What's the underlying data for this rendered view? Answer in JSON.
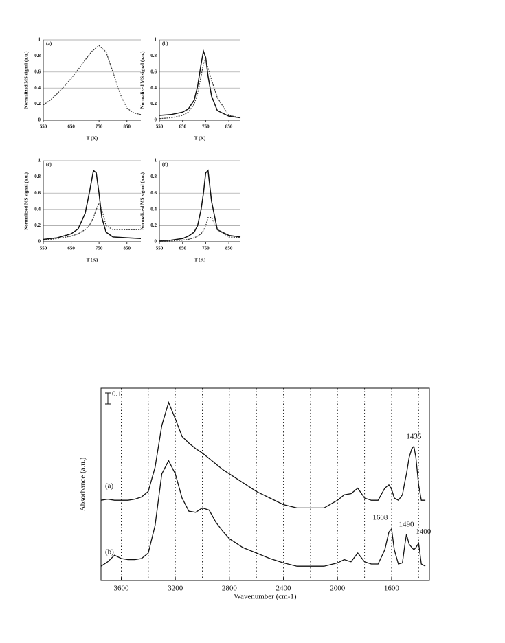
{
  "chart_data": [
    {
      "type": "line",
      "panel_label": "(a)",
      "xlabel": "T (K)",
      "ylabel": "Normalized MS signal (a.u.)",
      "xlim": [
        550,
        900
      ],
      "xticks": [
        550,
        650,
        750,
        850
      ],
      "ylim": [
        0,
        1
      ],
      "yticks": [
        0,
        0.2,
        0.4,
        0.6,
        0.8,
        1
      ],
      "grid": true,
      "x": [
        550,
        575,
        600,
        625,
        650,
        675,
        700,
        725,
        750,
        775,
        800,
        825,
        850,
        875,
        900
      ],
      "series": [
        {
          "color": "#333333",
          "dash": "dashed",
          "values": [
            0.19,
            0.25,
            0.33,
            0.42,
            0.52,
            0.63,
            0.75,
            0.86,
            0.93,
            0.85,
            0.6,
            0.33,
            0.15,
            0.09,
            0.07
          ]
        }
      ]
    },
    {
      "type": "line",
      "panel_label": "(b)",
      "xlabel": "T (K)",
      "ylabel": "Normalized MS signal (a.u.)",
      "xlim": [
        550,
        900
      ],
      "xticks": [
        550,
        650,
        750,
        850
      ],
      "ylim": [
        0,
        1
      ],
      "yticks": [
        0,
        0.2,
        0.4,
        0.6,
        0.8,
        1
      ],
      "grid": true,
      "x": [
        550,
        600,
        650,
        675,
        700,
        715,
        730,
        740,
        750,
        760,
        775,
        800,
        850,
        900
      ],
      "series": [
        {
          "color": "#111111",
          "dash": "solid",
          "values": [
            0.06,
            0.07,
            0.1,
            0.14,
            0.25,
            0.42,
            0.7,
            0.86,
            0.78,
            0.55,
            0.3,
            0.12,
            0.05,
            0.03
          ]
        },
        {
          "color": "#333333",
          "dash": "dashed",
          "values": [
            0.02,
            0.03,
            0.06,
            0.1,
            0.2,
            0.33,
            0.55,
            0.7,
            0.76,
            0.65,
            0.5,
            0.28,
            0.06,
            0.03
          ]
        }
      ]
    },
    {
      "type": "line",
      "panel_label": "(c)",
      "xlabel": "T (K)",
      "ylabel": "Normalized MS signal (a.u.)",
      "xlim": [
        550,
        900
      ],
      "xticks": [
        550,
        650,
        750,
        850
      ],
      "ylim": [
        0,
        1
      ],
      "yticks": [
        0,
        0.2,
        0.4,
        0.6,
        0.8,
        1
      ],
      "grid": true,
      "x": [
        550,
        600,
        650,
        675,
        700,
        715,
        730,
        740,
        750,
        760,
        775,
        800,
        850,
        900
      ],
      "series": [
        {
          "color": "#111111",
          "dash": "solid",
          "values": [
            0.03,
            0.05,
            0.1,
            0.16,
            0.35,
            0.6,
            0.88,
            0.85,
            0.6,
            0.3,
            0.12,
            0.06,
            0.05,
            0.04
          ]
        },
        {
          "color": "#333333",
          "dash": "dashed",
          "values": [
            0.02,
            0.04,
            0.07,
            0.1,
            0.15,
            0.2,
            0.3,
            0.4,
            0.47,
            0.4,
            0.2,
            0.15,
            0.15,
            0.15
          ]
        }
      ]
    },
    {
      "type": "line",
      "panel_label": "(d)",
      "xlabel": "T (K)",
      "ylabel": "Normalized MS signal (a.u.)",
      "xlim": [
        550,
        900
      ],
      "xticks": [
        550,
        650,
        750,
        850
      ],
      "ylim": [
        0,
        1
      ],
      "yticks": [
        0,
        0.2,
        0.4,
        0.6,
        0.8,
        1
      ],
      "grid": true,
      "x": [
        550,
        600,
        650,
        675,
        700,
        715,
        730,
        740,
        750,
        760,
        775,
        800,
        850,
        900
      ],
      "series": [
        {
          "color": "#111111",
          "dash": "solid",
          "values": [
            0.01,
            0.02,
            0.04,
            0.07,
            0.12,
            0.2,
            0.4,
            0.6,
            0.85,
            0.88,
            0.5,
            0.15,
            0.08,
            0.06
          ]
        },
        {
          "color": "#333333",
          "dash": "dashed",
          "values": [
            0.01,
            0.01,
            0.02,
            0.03,
            0.05,
            0.07,
            0.1,
            0.14,
            0.2,
            0.3,
            0.3,
            0.15,
            0.06,
            0.05
          ]
        }
      ]
    },
    {
      "type": "spectrum",
      "xlabel": "Wavenumber (cm-1)",
      "ylabel": "Absorbance (a.u.)",
      "xlim": [
        3750,
        1320
      ],
      "xticks": [
        3600,
        3200,
        2800,
        2400,
        2000,
        1600
      ],
      "xgrid": [
        3600,
        3400,
        3200,
        3000,
        2800,
        2600,
        2400,
        2200,
        2000,
        1800,
        1600,
        1400
      ],
      "ylim": [
        0,
        1.75
      ],
      "scale_bar": 0.1,
      "x": [
        3750,
        3700,
        3650,
        3600,
        3550,
        3500,
        3450,
        3400,
        3350,
        3300,
        3250,
        3200,
        3150,
        3100,
        3050,
        3000,
        2950,
        2900,
        2850,
        2800,
        2700,
        2600,
        2500,
        2400,
        2300,
        2200,
        2100,
        2000,
        1950,
        1900,
        1850,
        1800,
        1750,
        1700,
        1650,
        1620,
        1600,
        1580,
        1550,
        1520,
        1500,
        1490,
        1470,
        1450,
        1435,
        1420,
        1400,
        1380,
        1350
      ],
      "series": [
        {
          "name": "(a)",
          "color": "#111111",
          "peaks": [
            1435
          ],
          "values": [
            0.73,
            0.74,
            0.73,
            0.73,
            0.73,
            0.74,
            0.76,
            0.81,
            1.03,
            1.41,
            1.62,
            1.47,
            1.31,
            1.25,
            1.2,
            1.16,
            1.11,
            1.06,
            1.01,
            0.97,
            0.89,
            0.81,
            0.75,
            0.69,
            0.66,
            0.66,
            0.66,
            0.73,
            0.78,
            0.79,
            0.84,
            0.75,
            0.73,
            0.73,
            0.84,
            0.87,
            0.83,
            0.75,
            0.73,
            0.78,
            0.91,
            0.97,
            1.12,
            1.2,
            1.22,
            1.12,
            0.87,
            0.73,
            0.73
          ]
        },
        {
          "name": "(b)",
          "color": "#111111",
          "peaks": [
            1608,
            1490,
            1400
          ],
          "values": [
            0.13,
            0.17,
            0.23,
            0.2,
            0.19,
            0.19,
            0.2,
            0.25,
            0.5,
            0.97,
            1.09,
            0.97,
            0.75,
            0.63,
            0.62,
            0.66,
            0.64,
            0.53,
            0.45,
            0.38,
            0.3,
            0.25,
            0.2,
            0.16,
            0.13,
            0.13,
            0.13,
            0.16,
            0.19,
            0.17,
            0.25,
            0.17,
            0.15,
            0.15,
            0.28,
            0.44,
            0.47,
            0.28,
            0.15,
            0.16,
            0.34,
            0.42,
            0.33,
            0.3,
            0.28,
            0.3,
            0.34,
            0.15,
            0.13
          ]
        }
      ]
    }
  ]
}
